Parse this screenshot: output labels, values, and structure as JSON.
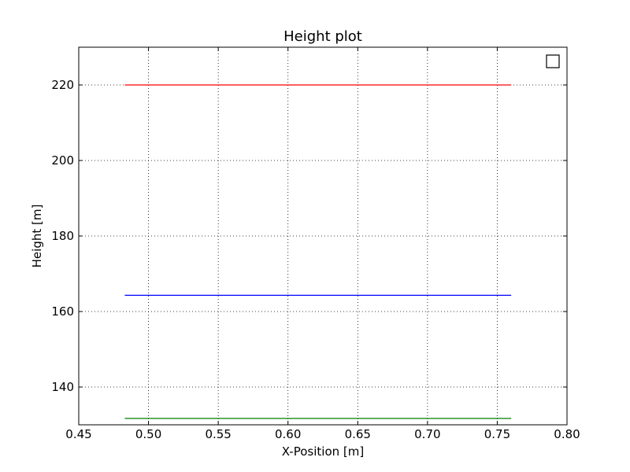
{
  "chart_data": {
    "type": "line",
    "title": "Height plot",
    "xlabel": "X-Position [m]",
    "ylabel": "Height [m]",
    "xlim": [
      0.45,
      0.8
    ],
    "ylim": [
      130,
      230
    ],
    "xticks": [
      "0.45",
      "0.50",
      "0.55",
      "0.60",
      "0.65",
      "0.70",
      "0.75",
      "0.80"
    ],
    "yticks": [
      "140",
      "160",
      "180",
      "200",
      "220"
    ],
    "grid": true,
    "legend": "top-right (empty)",
    "series": [
      {
        "color": "#ff0000",
        "x": [
          0.483,
          0.76
        ],
        "y": [
          220.0,
          220.0
        ]
      },
      {
        "color": "#0000ff",
        "x": [
          0.483,
          0.76
        ],
        "y": [
          164.3,
          164.3
        ]
      },
      {
        "color": "#008000",
        "x": [
          0.483,
          0.76
        ],
        "y": [
          131.7,
          131.7
        ]
      }
    ]
  }
}
